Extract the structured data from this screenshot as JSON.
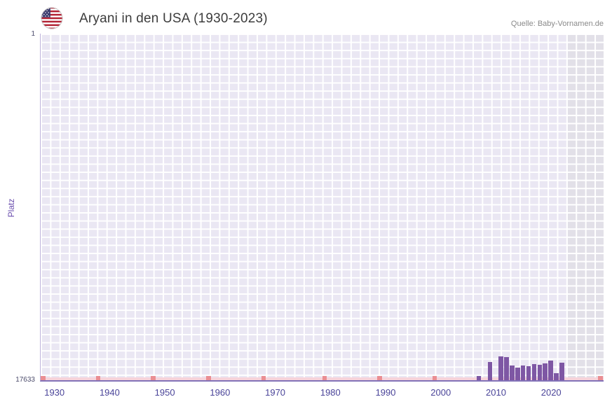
{
  "header": {
    "title": "Aryani in den USA (1930-2023)",
    "source": "Quelle: Baby-Vornamen.de"
  },
  "chart_data": {
    "type": "bar",
    "title": "Aryani in den USA (1930-2023)",
    "xlabel": "",
    "ylabel": "Platz",
    "y_axis": {
      "min": 1,
      "max": 17633,
      "inverted": true,
      "top_label": "1",
      "bottom_label": "17633"
    },
    "x_axis": {
      "range": [
        1928,
        2030
      ],
      "ticks": [
        {
          "year": 1930,
          "label": "1930"
        },
        {
          "year": 1940,
          "label": "1940"
        },
        {
          "year": 1950,
          "label": "1950"
        },
        {
          "year": 1960,
          "label": "1960"
        },
        {
          "year": 1970,
          "label": "1970"
        },
        {
          "year": 1980,
          "label": "1980"
        },
        {
          "year": 1990,
          "label": "1990"
        },
        {
          "year": 2000,
          "label": "2000"
        },
        {
          "year": 2010,
          "label": "2010"
        },
        {
          "year": 2020,
          "label": "2020"
        }
      ]
    },
    "series": [
      {
        "name": "Platz",
        "points": [
          {
            "year": 2007,
            "rank": 17430
          },
          {
            "year": 2009,
            "rank": 16720
          },
          {
            "year": 2011,
            "rank": 16420
          },
          {
            "year": 2012,
            "rank": 16470
          },
          {
            "year": 2013,
            "rank": 16900
          },
          {
            "year": 2014,
            "rank": 17000
          },
          {
            "year": 2015,
            "rank": 16870
          },
          {
            "year": 2016,
            "rank": 16910
          },
          {
            "year": 2017,
            "rank": 16830
          },
          {
            "year": 2018,
            "rank": 16860
          },
          {
            "year": 2019,
            "rank": 16760
          },
          {
            "year": 2020,
            "rank": 16650
          },
          {
            "year": 2021,
            "rank": 17280
          },
          {
            "year": 2022,
            "rank": 16740
          }
        ]
      }
    ],
    "missing_year_markers": {
      "years": [
        1928,
        1938,
        1948,
        1958,
        1968,
        1979,
        1989,
        1999,
        2029
      ]
    },
    "future_band": {
      "from_year": 2023.5
    },
    "grid": true,
    "legend": "none",
    "colors": {
      "bar": "#7e57a4",
      "plot_bg": "#eae7f3",
      "gridline": "#ffffff",
      "future_band": "#e2e0e8",
      "axis_line": "#8272b8",
      "missing_strip": "#f6d3da",
      "missing_marker": "#ea8e93",
      "tick_label": "#4a4499",
      "title_text": "#3c3c3c",
      "source_text": "#8a8a8a"
    }
  }
}
